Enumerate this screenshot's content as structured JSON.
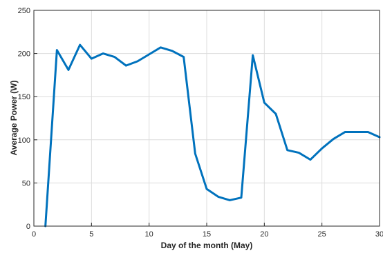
{
  "chart_data": {
    "type": "line",
    "title": "",
    "xlabel": "Day of the month (May)",
    "ylabel": "Average Power (W)",
    "xlim": [
      0,
      30
    ],
    "ylim": [
      0,
      250
    ],
    "xticks": [
      0,
      5,
      10,
      15,
      20,
      25,
      30
    ],
    "yticks": [
      0,
      50,
      100,
      150,
      200,
      250
    ],
    "grid": true,
    "series": [
      {
        "color": "#0072BD",
        "x": [
          1,
          2,
          3,
          4,
          5,
          6,
          7,
          8,
          9,
          10,
          11,
          12,
          13,
          14,
          15,
          16,
          17,
          18,
          19,
          20,
          21,
          22,
          23,
          24,
          25,
          26,
          27,
          28,
          29,
          30
        ],
        "y": [
          0,
          204,
          181,
          210,
          194,
          200,
          196,
          186,
          191,
          199,
          207,
          203,
          196,
          84,
          43,
          34,
          30,
          33,
          198,
          143,
          130,
          88,
          85,
          77,
          90,
          101,
          109,
          109,
          109,
          103
        ]
      }
    ]
  }
}
